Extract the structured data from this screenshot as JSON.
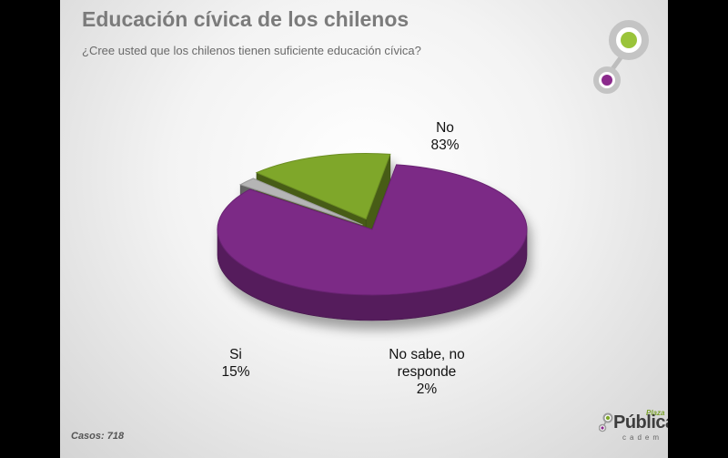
{
  "title": "Educación cívica de los chilenos",
  "subtitle": "¿Cree usted que los chilenos tienen suficiente educación cívica?",
  "footer": {
    "cases": "Casos: 718"
  },
  "brand": {
    "plaza": "Plaza",
    "publica": "Pública",
    "cadem": "cadem"
  },
  "colors": {
    "no": "#7b2a86",
    "si": "#7fa72a",
    "no_sabe": "#b5b5b5",
    "logo_green": "#9ac43a",
    "logo_purple": "#8b2a8c"
  },
  "chart_data": {
    "type": "pie",
    "title": "Educación cívica de los chilenos",
    "style": "3d-exploded",
    "slices": [
      {
        "label": "No",
        "value": 83,
        "display": "83%",
        "color": "#7b2a86"
      },
      {
        "label": "No sabe, no responde",
        "value": 2,
        "display": "2%",
        "color": "#b5b5b5"
      },
      {
        "label": "Si",
        "value": 15,
        "display": "15%",
        "color": "#7fa72a"
      }
    ]
  },
  "labels": {
    "no": {
      "name": "No",
      "pct": "83%"
    },
    "si": {
      "name": "Si",
      "pct": "15%"
    },
    "ns": {
      "line1": "No sabe, no",
      "line2": "responde",
      "pct": "2%"
    }
  }
}
